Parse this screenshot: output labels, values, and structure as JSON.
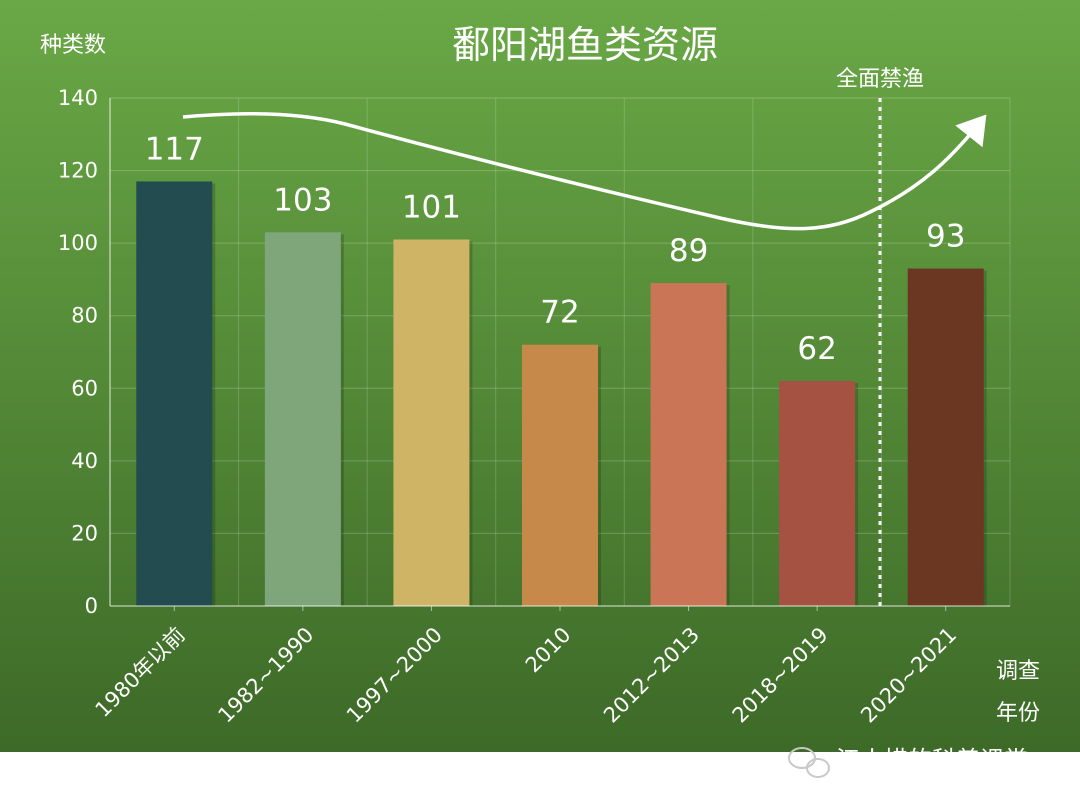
{
  "chart_data": {
    "type": "bar",
    "title": "鄱阳湖鱼类资源",
    "ylabel": "种类数",
    "xlabel_lines": [
      "调查",
      "年份"
    ],
    "ylim": [
      0,
      140
    ],
    "yticks": [
      0,
      20,
      40,
      60,
      80,
      100,
      120,
      140
    ],
    "categories": [
      "1980年以前",
      "1982~1990",
      "1997~2000",
      "2010",
      "2012~2013",
      "2018~2019",
      "2020~2021"
    ],
    "values": [
      117,
      103,
      101,
      72,
      89,
      62,
      93
    ],
    "colors": [
      "#234c50",
      "#7fa57b",
      "#cfb466",
      "#c6894a",
      "#c97556",
      "#a65243",
      "#6b3722"
    ],
    "grid": true,
    "annotation": "全面禁渔"
  },
  "watermark": "江小惜的科普课堂",
  "colors": {
    "bg_top": "#6aa846",
    "bg_bottom": "#3d6a28",
    "text": "#ffffff"
  }
}
